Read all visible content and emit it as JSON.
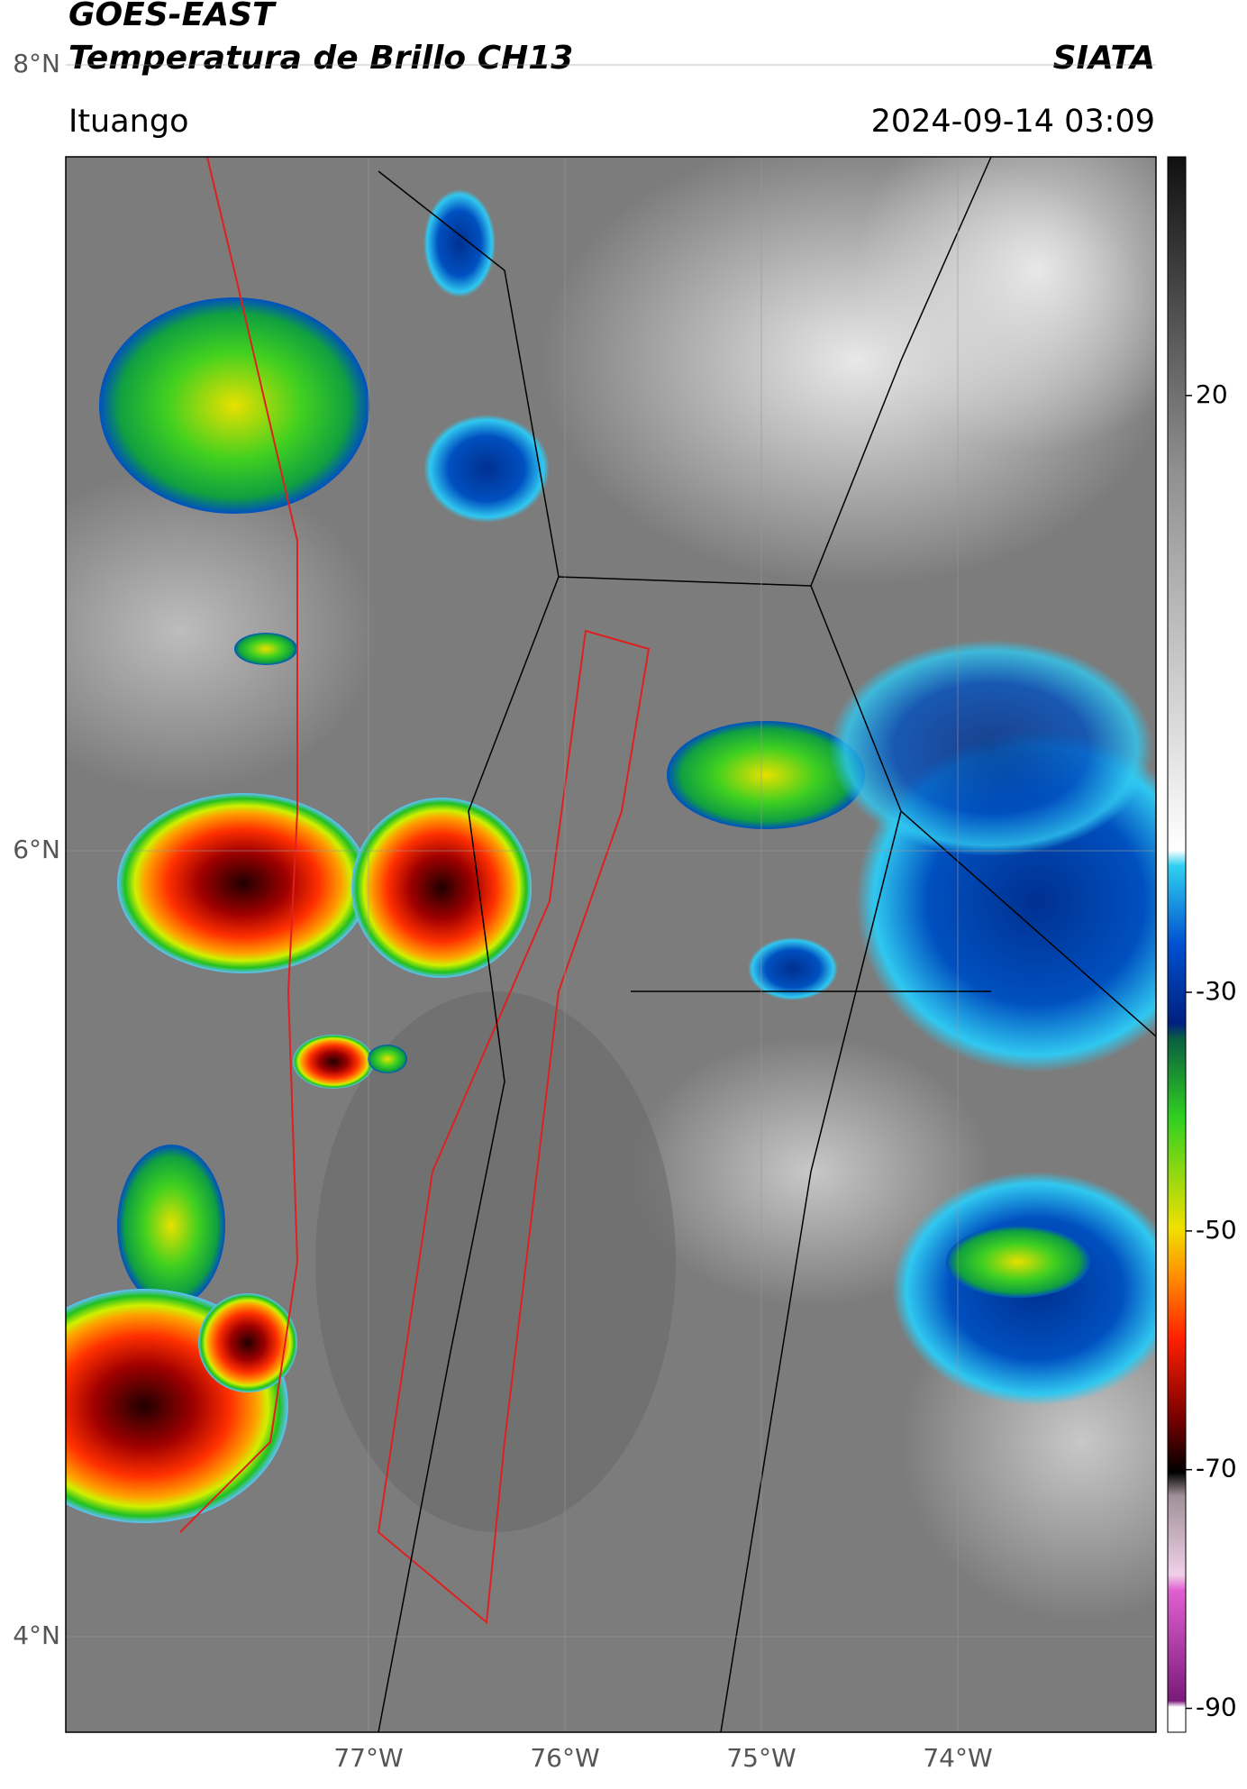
{
  "header": {
    "title": "GOES-EAST",
    "subtitle": "Temperatura de Brillo CH13",
    "source": "SIATA",
    "location": "Ituango",
    "datetime": "2024-09-14 03:09"
  },
  "map": {
    "lat_ticks": [
      {
        "value": 8,
        "label": "8°N"
      },
      {
        "value": 6,
        "label": "6°N"
      },
      {
        "value": 4,
        "label": "4°N"
      }
    ],
    "lon_ticks": [
      {
        "value": -77,
        "label": "77°W"
      },
      {
        "value": -76,
        "label": "76°W"
      },
      {
        "value": -75,
        "label": "75°W"
      },
      {
        "value": -74,
        "label": "74°W"
      }
    ],
    "grid": true
  },
  "colorbar": {
    "clim": [
      -92,
      40
    ],
    "ticks": [
      20,
      -30,
      -50,
      -70,
      -90
    ]
  }
}
